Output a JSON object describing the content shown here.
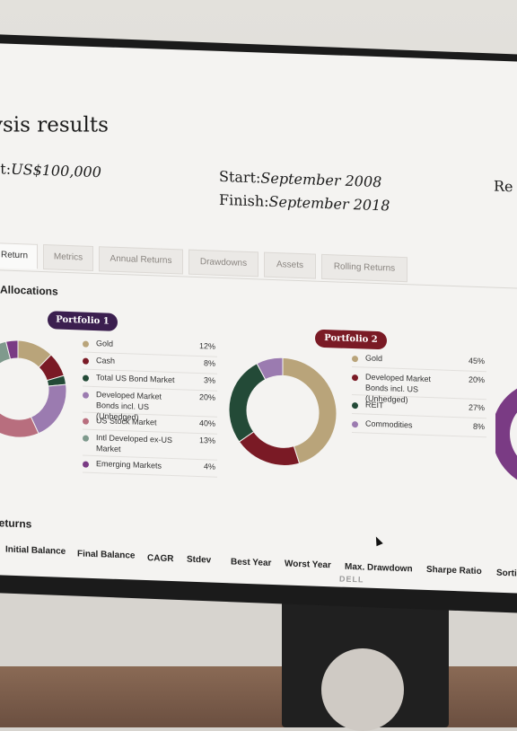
{
  "page": {
    "title": "ysis results",
    "amount_label": "nt:",
    "amount_value": "US$100,000",
    "start_label": "Start:",
    "start_value": "September 2008",
    "finish_label": "Finish:",
    "finish_value": "September 2018",
    "rebalance_fragment": "Re"
  },
  "tabs": [
    "Return",
    "Metrics",
    "Annual Returns",
    "Drawdowns",
    "Assets",
    "Rolling Returns"
  ],
  "sections": {
    "allocations": "Allocations",
    "returns": "Returns"
  },
  "portfolio1": {
    "name": "Portfolio 1",
    "color": "#3b1f4f",
    "items": [
      {
        "label": "Gold",
        "value": "12%",
        "pct": 12,
        "color": "#b9a47a"
      },
      {
        "label": "Cash",
        "value": "8%",
        "pct": 8,
        "color": "#7a1a25"
      },
      {
        "label": "Total US Bond Market",
        "value": "3%",
        "pct": 3,
        "color": "#234a37"
      },
      {
        "label": "Developed Market Bonds incl. US (Unhedged)",
        "value": "20%",
        "pct": 20,
        "color": "#9b7bb0"
      },
      {
        "label": "US Stock Market",
        "value": "40%",
        "pct": 40,
        "color": "#b86e7e"
      },
      {
        "label": "Intl Developed ex-US Market",
        "value": "13%",
        "pct": 13,
        "color": "#7f9a8d"
      },
      {
        "label": "Emerging Markets",
        "value": "4%",
        "pct": 4,
        "color": "#7a3b84"
      }
    ]
  },
  "portfolio2": {
    "name": "Portfolio 2",
    "color": "#7a1a25",
    "items": [
      {
        "label": "Gold",
        "value": "45%",
        "pct": 45,
        "color": "#b9a47a"
      },
      {
        "label": "Developed Market Bonds incl. US (Unhedged)",
        "value": "20%",
        "pct": 20,
        "color": "#7a1a25"
      },
      {
        "label": "REIT",
        "value": "27%",
        "pct": 27,
        "color": "#234a37"
      },
      {
        "label": "Commodities",
        "value": "8%",
        "pct": 8,
        "color": "#9b7bb0"
      }
    ]
  },
  "returns_columns": [
    "Initial Balance",
    "Final Balance",
    "CAGR",
    "Stdev",
    "Best Year",
    "Worst Year",
    "Max. Drawdown",
    "Sharpe Ratio",
    "Sorti"
  ],
  "monitor_brand": "DELL"
}
